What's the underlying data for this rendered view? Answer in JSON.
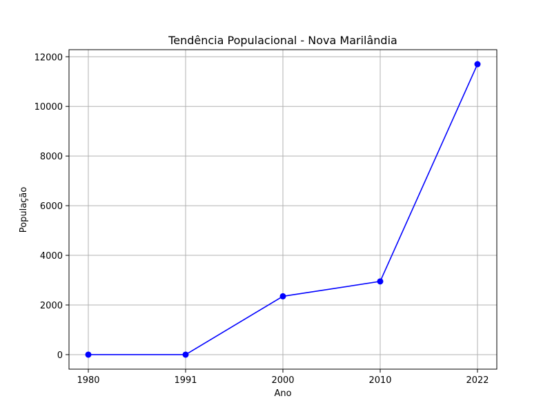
{
  "chart_data": {
    "type": "line",
    "title": "Tendência Populacional - Nova Marilândia",
    "xlabel": "Ano",
    "ylabel": "População",
    "x": [
      1980,
      1991,
      2000,
      2010,
      2022
    ],
    "x_tick_labels": [
      "1980",
      "1991",
      "2000",
      "2010",
      "2022"
    ],
    "xlim": [
      1979.9,
      2022.1
    ],
    "series": [
      {
        "values": [
          0,
          0,
          2350,
          2950,
          11700
        ],
        "color": "#0000ff",
        "marker": "circle"
      }
    ],
    "yticks": [
      0,
      2000,
      4000,
      6000,
      8000,
      10000,
      12000
    ],
    "y_tick_labels": [
      "0",
      "2000",
      "4000",
      "6000",
      "8000",
      "10000",
      "12000"
    ],
    "ylim": [
      -585,
      12285
    ],
    "grid": true,
    "legend": false
  }
}
